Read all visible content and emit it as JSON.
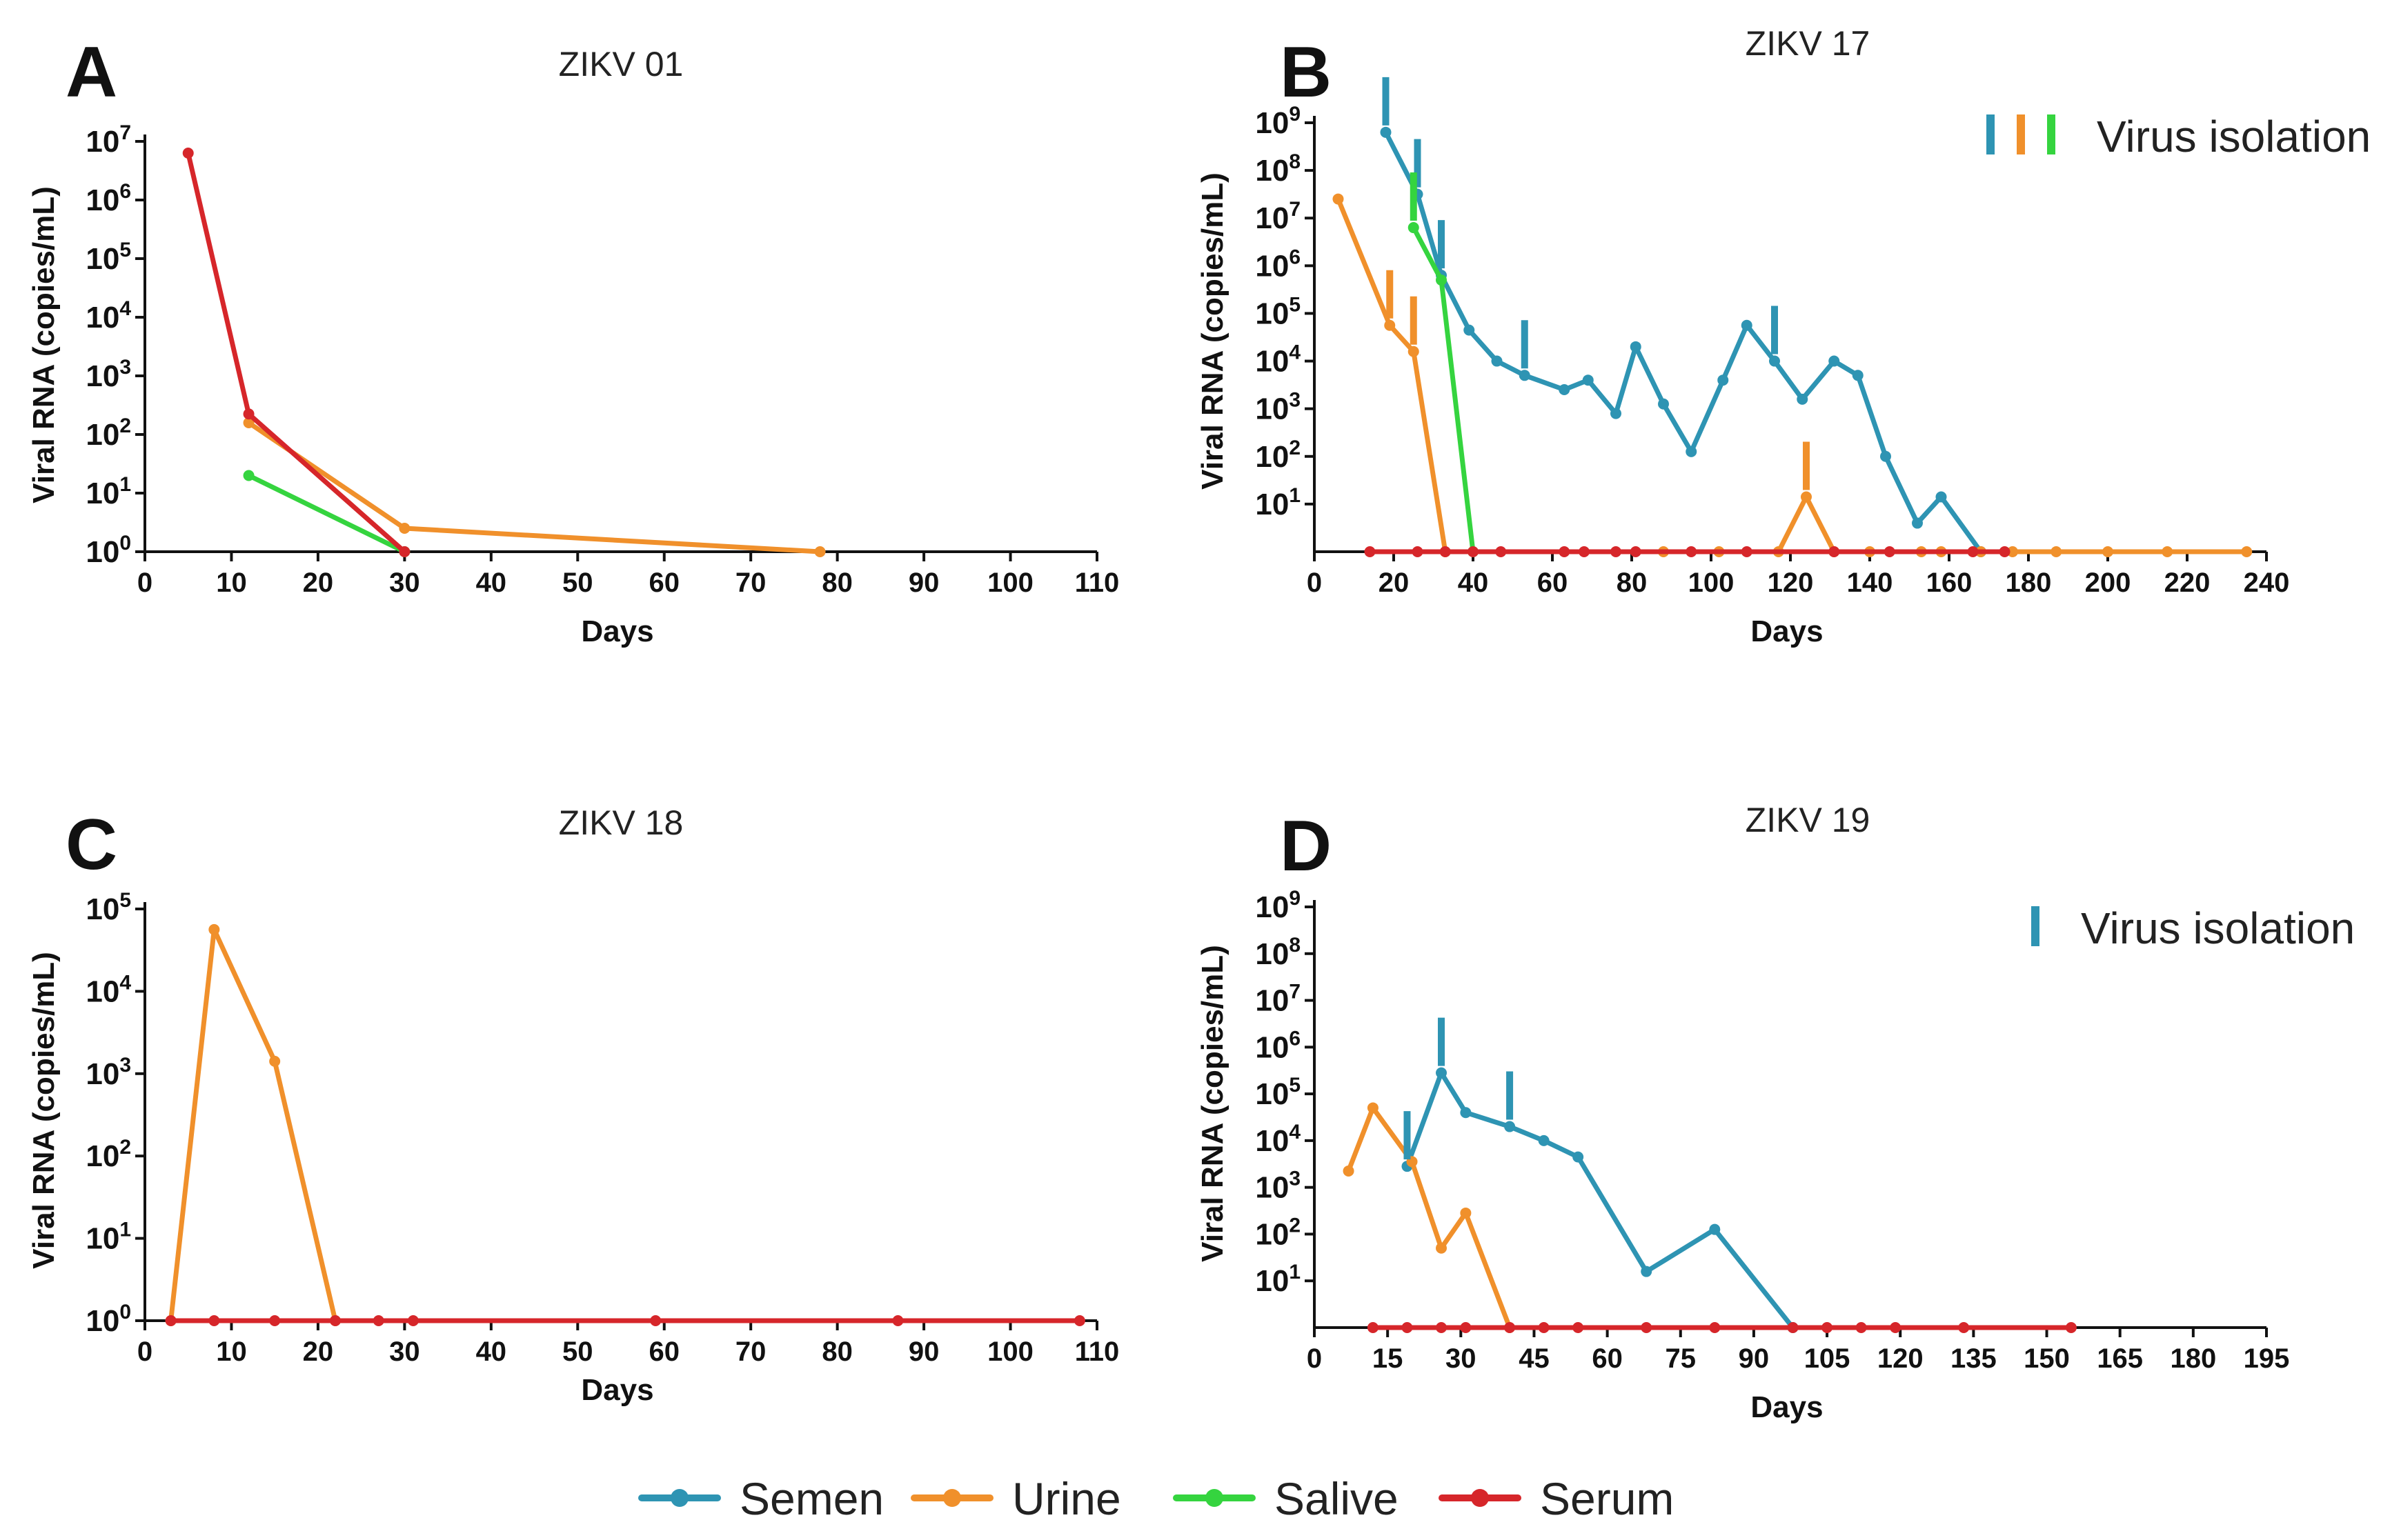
{
  "figure": {
    "legend": [
      {
        "name": "Semen",
        "color": "#2e94b3"
      },
      {
        "name": "Urine",
        "color": "#f0902b"
      },
      {
        "name": "Salive",
        "color": "#35d43f"
      },
      {
        "name": "Serum",
        "color": "#d6262a"
      }
    ]
  },
  "chart_data": [
    {
      "type": "line",
      "panel": "A",
      "title": "ZIKV 01",
      "xlabel": "Days",
      "ylabel": "Viral RNA (copies/mL)",
      "xlim": [
        0,
        110
      ],
      "xticks": [
        0,
        10,
        20,
        30,
        40,
        50,
        60,
        70,
        80,
        90,
        100,
        110
      ],
      "yscale": "log10",
      "ylim_exponents": [
        0,
        7
      ],
      "yticks": [
        {
          "base": "10",
          "exp": "0"
        },
        {
          "base": "10",
          "exp": "1"
        },
        {
          "base": "10",
          "exp": "2"
        },
        {
          "base": "10",
          "exp": "3"
        },
        {
          "base": "10",
          "exp": "4"
        },
        {
          "base": "10",
          "exp": "5"
        },
        {
          "base": "10",
          "exp": "6"
        },
        {
          "base": "10",
          "exp": "7"
        }
      ],
      "series": [
        {
          "name": "Urine",
          "color": "#f0902b",
          "x": [
            12,
            30,
            78
          ],
          "log10_y": [
            2.2,
            0.4,
            0
          ]
        },
        {
          "name": "Salive",
          "color": "#35d43f",
          "x": [
            12,
            30
          ],
          "log10_y": [
            1.3,
            0
          ]
        },
        {
          "name": "Serum",
          "color": "#d6262a",
          "x": [
            5,
            12,
            30
          ],
          "log10_y": [
            6.8,
            2.35,
            0
          ]
        }
      ],
      "virus_isolation": []
    },
    {
      "type": "line",
      "panel": "B",
      "title": "ZIKV 17",
      "xlabel": "Days",
      "ylabel": "Viral RNA (copies/mL)",
      "xlim": [
        0,
        240
      ],
      "xticks": [
        0,
        20,
        40,
        60,
        80,
        100,
        120,
        140,
        160,
        180,
        200,
        220,
        240
      ],
      "yscale": "log10",
      "ylim_exponents": [
        0,
        9
      ],
      "yticks": [
        {
          "base": "10",
          "exp": "1"
        },
        {
          "base": "10",
          "exp": "2"
        },
        {
          "base": "10",
          "exp": "3"
        },
        {
          "base": "10",
          "exp": "4"
        },
        {
          "base": "10",
          "exp": "5"
        },
        {
          "base": "10",
          "exp": "6"
        },
        {
          "base": "10",
          "exp": "7"
        },
        {
          "base": "10",
          "exp": "8"
        },
        {
          "base": "10",
          "exp": "9"
        }
      ],
      "isolation_label": "Virus isolation",
      "isolation_colors": [
        "#2e94b3",
        "#f0902b",
        "#35d43f"
      ],
      "series": [
        {
          "name": "Semen",
          "color": "#2e94b3",
          "x": [
            18,
            26,
            32,
            39,
            46,
            53,
            63,
            69,
            76,
            81,
            88,
            95,
            103,
            109,
            116,
            123,
            131,
            137,
            144,
            152,
            158,
            168
          ],
          "log10_y": [
            8.8,
            7.5,
            5.8,
            4.65,
            4.0,
            3.7,
            3.4,
            3.6,
            2.9,
            4.3,
            3.1,
            2.1,
            3.6,
            4.75,
            4.0,
            3.2,
            4.0,
            3.7,
            2.0,
            0.6,
            1.15,
            0
          ]
        },
        {
          "name": "Urine",
          "color": "#f0902b",
          "x": [
            6,
            19,
            25,
            33,
            88,
            102,
            117,
            124,
            131,
            140,
            153,
            158,
            168,
            176,
            187,
            200,
            215,
            235
          ],
          "log10_y": [
            7.4,
            4.75,
            4.2,
            0,
            0,
            0,
            0,
            1.15,
            0,
            0,
            0,
            0,
            0,
            0,
            0,
            0,
            0,
            0
          ]
        },
        {
          "name": "Salive",
          "color": "#35d43f",
          "x": [
            25,
            32,
            40
          ],
          "log10_y": [
            6.8,
            5.7,
            0
          ]
        },
        {
          "name": "Serum",
          "color": "#d6262a",
          "x": [
            14,
            26,
            33,
            40,
            47,
            63,
            68,
            76,
            81,
            95,
            109,
            131,
            145,
            166,
            174
          ],
          "log10_y": [
            0,
            0,
            0,
            0,
            0,
            0,
            0,
            0,
            0,
            0,
            0,
            0,
            0,
            0,
            0
          ]
        }
      ],
      "virus_isolation": [
        {
          "color": "#2e94b3",
          "x": 18,
          "log10_y": 8.8
        },
        {
          "color": "#2e94b3",
          "x": 26,
          "log10_y": 7.5
        },
        {
          "color": "#2e94b3",
          "x": 32,
          "log10_y": 5.8
        },
        {
          "color": "#2e94b3",
          "x": 53,
          "log10_y": 3.7
        },
        {
          "color": "#2e94b3",
          "x": 116,
          "log10_y": 4.0
        },
        {
          "color": "#f0902b",
          "x": 19,
          "log10_y": 4.75
        },
        {
          "color": "#f0902b",
          "x": 25,
          "log10_y": 4.2
        },
        {
          "color": "#f0902b",
          "x": 124,
          "log10_y": 1.15
        },
        {
          "color": "#35d43f",
          "x": 25,
          "log10_y": 6.8
        }
      ]
    },
    {
      "type": "line",
      "panel": "C",
      "title": "ZIKV 18",
      "xlabel": "Days",
      "ylabel": "Viral RNA (copies/mL)",
      "xlim": [
        0,
        110
      ],
      "xticks": [
        0,
        10,
        20,
        30,
        40,
        50,
        60,
        70,
        80,
        90,
        100,
        110
      ],
      "yscale": "log10",
      "ylim_exponents": [
        0,
        5
      ],
      "yticks": [
        {
          "base": "10",
          "exp": "0"
        },
        {
          "base": "10",
          "exp": "1"
        },
        {
          "base": "10",
          "exp": "2"
        },
        {
          "base": "10",
          "exp": "3"
        },
        {
          "base": "10",
          "exp": "4"
        },
        {
          "base": "10",
          "exp": "5"
        }
      ],
      "series": [
        {
          "name": "Urine",
          "color": "#f0902b",
          "x": [
            3,
            8,
            15,
            22
          ],
          "log10_y": [
            0,
            4.75,
            3.15,
            0
          ]
        },
        {
          "name": "Serum",
          "color": "#d6262a",
          "x": [
            3,
            8,
            15,
            22,
            27,
            31,
            59,
            87,
            108
          ],
          "log10_y": [
            0,
            0,
            0,
            0,
            0,
            0,
            0,
            0,
            0
          ]
        }
      ],
      "virus_isolation": []
    },
    {
      "type": "line",
      "panel": "D",
      "title": "ZIKV 19",
      "xlabel": "Days",
      "ylabel": "Viral RNA (copies/mL)",
      "xlim": [
        0,
        195
      ],
      "xticks": [
        0,
        15,
        30,
        45,
        60,
        75,
        90,
        105,
        120,
        135,
        150,
        165,
        180,
        195
      ],
      "yscale": "log10",
      "ylim_exponents": [
        0,
        9
      ],
      "yticks": [
        {
          "base": "10",
          "exp": "1"
        },
        {
          "base": "10",
          "exp": "2"
        },
        {
          "base": "10",
          "exp": "3"
        },
        {
          "base": "10",
          "exp": "4"
        },
        {
          "base": "10",
          "exp": "5"
        },
        {
          "base": "10",
          "exp": "6"
        },
        {
          "base": "10",
          "exp": "7"
        },
        {
          "base": "10",
          "exp": "8"
        },
        {
          "base": "10",
          "exp": "9"
        }
      ],
      "isolation_label": "Virus isolation",
      "isolation_colors": [
        "#2e94b3"
      ],
      "series": [
        {
          "name": "Semen",
          "color": "#2e94b3",
          "x": [
            19,
            26,
            31,
            40,
            47,
            54,
            68,
            82,
            98
          ],
          "log10_y": [
            3.45,
            5.45,
            4.6,
            4.3,
            4.0,
            3.65,
            1.2,
            2.1,
            0
          ]
        },
        {
          "name": "Urine",
          "color": "#f0902b",
          "x": [
            7,
            12,
            20,
            26,
            31,
            40
          ],
          "log10_y": [
            3.35,
            4.7,
            3.55,
            1.7,
            2.45,
            0
          ]
        },
        {
          "name": "Serum",
          "color": "#d6262a",
          "x": [
            12,
            19,
            26,
            31,
            40,
            47,
            54,
            68,
            82,
            98,
            105,
            112,
            119,
            133,
            155
          ],
          "log10_y": [
            0,
            0,
            0,
            0,
            0,
            0,
            0,
            0,
            0,
            0,
            0,
            0,
            0,
            0,
            0
          ]
        }
      ],
      "virus_isolation": [
        {
          "color": "#2e94b3",
          "x": 19,
          "log10_y": 3.45
        },
        {
          "color": "#2e94b3",
          "x": 26,
          "log10_y": 5.45
        },
        {
          "color": "#2e94b3",
          "x": 40,
          "log10_y": 4.3
        }
      ]
    }
  ]
}
